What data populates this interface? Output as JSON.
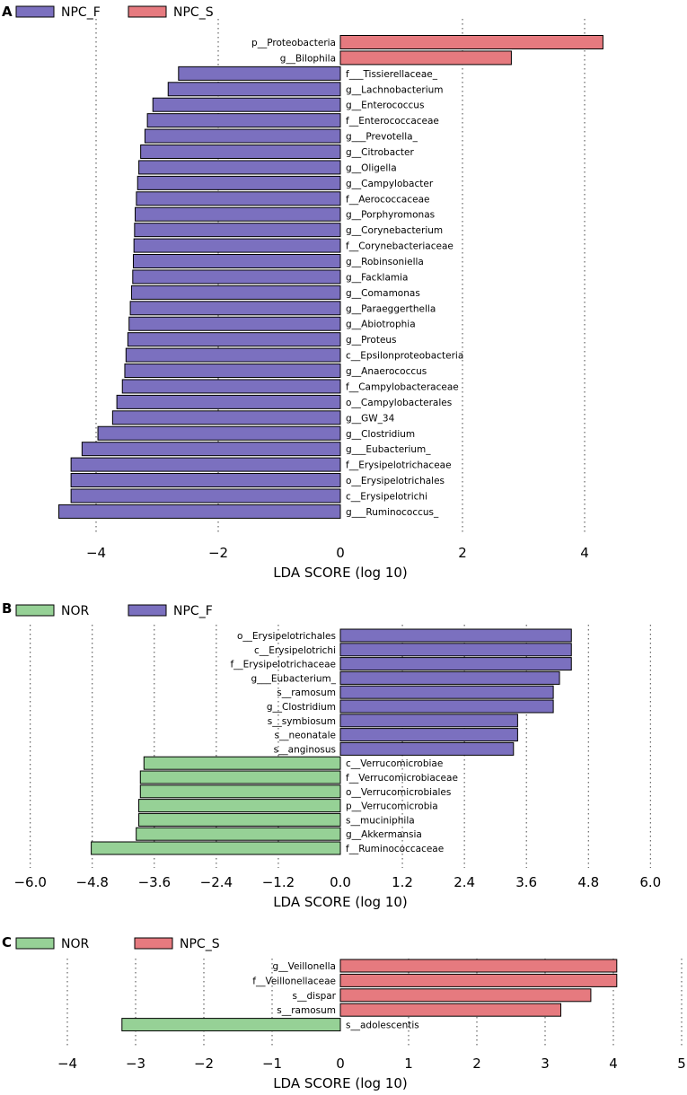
{
  "chart_data": [
    {
      "type": "bar",
      "panel": "A",
      "xlabel": "LDA SCORE (log 10)",
      "xlim": [
        -4.8,
        5.5
      ],
      "xticks": [
        -4,
        -2,
        0,
        2,
        4
      ],
      "tick_labels": [
        "−4",
        "−2",
        "0",
        "2",
        "4"
      ],
      "gridlines": [
        -4,
        -2,
        2,
        4
      ],
      "series": [
        {
          "name": "NPC_F",
          "color": "#7b70bf"
        },
        {
          "name": "NPC_S",
          "color": "#e67a7f"
        }
      ],
      "categories": [
        "p__Proteobacteria",
        "g__Bilophila",
        "f___Tissierellaceae_",
        "g__Lachnobacterium",
        "g__Enterococcus",
        "f__Enterococcaceae",
        "g___Prevotella_",
        "g__Citrobacter",
        "g__Oligella",
        "g__Campylobacter",
        "f__Aerococcaceae",
        "g__Porphyromonas",
        "g__Corynebacterium",
        "f__Corynebacteriaceae",
        "g__Robinsoniella",
        "g__Facklamia",
        "g__Comamonas",
        "g__Paraeggerthella",
        "g__Abiotrophia",
        "g__Proteus",
        "c__Epsilonproteobacteria",
        "g__Anaerococcus",
        "f__Campylobacteraceae",
        "o__Campylobacterales",
        "g__GW_34",
        "g__Clostridium",
        "g___Eubacterium_",
        "f__Erysipelotrichaceae",
        "o__Erysipelotrichales",
        "c__Erysipelotrichi",
        "g___Ruminococcus_"
      ],
      "values": [
        4.3,
        2.8,
        -2.65,
        -2.82,
        -3.07,
        -3.16,
        -3.2,
        -3.27,
        -3.3,
        -3.32,
        -3.34,
        -3.36,
        -3.37,
        -3.38,
        -3.39,
        -3.4,
        -3.42,
        -3.44,
        -3.46,
        -3.48,
        -3.51,
        -3.53,
        -3.57,
        -3.66,
        -3.73,
        -3.97,
        -4.23,
        -4.41,
        -4.41,
        -4.41,
        -4.61
      ],
      "group": [
        "NPC_S",
        "NPC_S",
        "NPC_F",
        "NPC_F",
        "NPC_F",
        "NPC_F",
        "NPC_F",
        "NPC_F",
        "NPC_F",
        "NPC_F",
        "NPC_F",
        "NPC_F",
        "NPC_F",
        "NPC_F",
        "NPC_F",
        "NPC_F",
        "NPC_F",
        "NPC_F",
        "NPC_F",
        "NPC_F",
        "NPC_F",
        "NPC_F",
        "NPC_F",
        "NPC_F",
        "NPC_F",
        "NPC_F",
        "NPC_F",
        "NPC_F",
        "NPC_F",
        "NPC_F",
        "NPC_F"
      ]
    },
    {
      "type": "bar",
      "panel": "B",
      "xlabel": "LDA SCORE (log 10)",
      "xlim": [
        -6.6,
        6.9
      ],
      "xticks": [
        -6.0,
        -4.8,
        -3.6,
        -2.4,
        -1.2,
        0.0,
        1.2,
        2.4,
        3.6,
        4.8,
        6.0
      ],
      "tick_labels": [
        "−6.0",
        "−4.8",
        "−3.6",
        "−2.4",
        "−1.2",
        "0.0",
        "1.2",
        "2.4",
        "3.6",
        "4.8",
        "6.0"
      ],
      "gridlines": [
        -6.0,
        -4.8,
        -3.6,
        -2.4,
        -1.2,
        1.2,
        2.4,
        3.6,
        4.8,
        6.0
      ],
      "series": [
        {
          "name": "NOR",
          "color": "#96d196"
        },
        {
          "name": "NPC_F",
          "color": "#7b70bf"
        }
      ],
      "categories": [
        "o__Erysipelotrichales",
        "c__Erysipelotrichi",
        "f__Erysipelotrichaceae",
        "g___Eubacterium_",
        "s__ramosum",
        "g__Clostridium",
        "s__symbiosum",
        "s__neonatale",
        "s__anginosus",
        "c__Verrucomicrobiae",
        "f__Verrucomicrobiaceae",
        "o__Verrucomicrobiales",
        "p__Verrucomicrobia",
        "s__muciniphila",
        "g__Akkermansia",
        "f__Ruminococcaceae"
      ],
      "values": [
        4.47,
        4.47,
        4.47,
        4.24,
        4.12,
        4.12,
        3.43,
        3.43,
        3.35,
        -3.8,
        -3.87,
        -3.87,
        -3.9,
        -3.9,
        -3.95,
        -4.82
      ],
      "group": [
        "NPC_F",
        "NPC_F",
        "NPC_F",
        "NPC_F",
        "NPC_F",
        "NPC_F",
        "NPC_F",
        "NPC_F",
        "NPC_F",
        "NOR",
        "NOR",
        "NOR",
        "NOR",
        "NOR",
        "NOR",
        "NOR"
      ]
    },
    {
      "type": "bar",
      "panel": "C",
      "xlabel": "LDA SCORE (log 10)",
      "xlim": [
        -4.5,
        5.1
      ],
      "xticks": [
        -4,
        -3,
        -2,
        -1,
        0,
        1,
        2,
        3,
        4,
        5
      ],
      "tick_labels": [
        "−4",
        "−3",
        "−2",
        "−1",
        "0",
        "1",
        "2",
        "3",
        "4",
        "5"
      ],
      "gridlines": [
        -4,
        -3,
        -2,
        -1,
        1,
        2,
        3,
        4,
        5
      ],
      "series": [
        {
          "name": "NOR",
          "color": "#96d196"
        },
        {
          "name": "NPC_S",
          "color": "#e67a7f"
        }
      ],
      "categories": [
        "g__Veillonella",
        "f__Veillonellaceae",
        "s__dispar",
        "s__ramosum",
        "s__adolescentis"
      ],
      "values": [
        4.05,
        4.05,
        3.67,
        3.23,
        -3.2
      ],
      "group": [
        "NPC_S",
        "NPC_S",
        "NPC_S",
        "NPC_S",
        "NOR"
      ]
    }
  ]
}
